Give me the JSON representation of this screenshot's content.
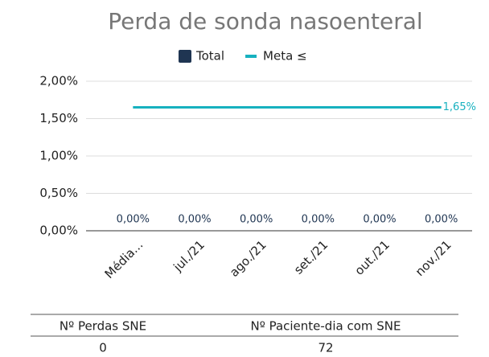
{
  "chart_data": {
    "type": "bar",
    "title": "Perda de sonda nasoenteral",
    "categories": [
      "Média...",
      "jul./21",
      "ago./21",
      "set./21",
      "out./21",
      "nov./21"
    ],
    "series": [
      {
        "name": "Total",
        "type": "bar",
        "color": "#1f3552",
        "values": [
          0,
          0,
          0,
          0,
          0,
          0
        ],
        "value_labels": [
          "0,00%",
          "0,00%",
          "0,00%",
          "0,00%",
          "0,00%",
          "0,00%"
        ]
      },
      {
        "name": "Meta ≤",
        "type": "line",
        "color": "#17b1bf",
        "values": [
          1.65,
          1.65,
          1.65,
          1.65,
          1.65,
          1.65
        ],
        "value_labels": [
          null,
          null,
          null,
          null,
          null,
          "1,65%"
        ]
      }
    ],
    "ylim": [
      0,
      2
    ],
    "yticks": [
      {
        "value": 0,
        "label": "0,00%"
      },
      {
        "value": 0.5,
        "label": "0,50%"
      },
      {
        "value": 1,
        "label": "1,00%"
      },
      {
        "value": 1.5,
        "label": "1,50%"
      },
      {
        "value": 2,
        "label": "2,00%"
      }
    ],
    "grid": true,
    "legend": "top"
  },
  "table": {
    "columns": [
      "Nº Perdas SNE",
      "Nº Paciente-dia com SNE"
    ],
    "rows": [
      [
        "0",
        "72"
      ]
    ]
  }
}
